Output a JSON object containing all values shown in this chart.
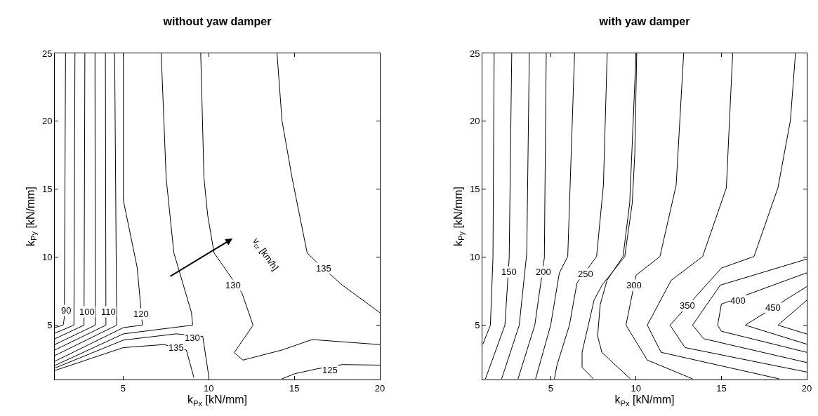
{
  "chart_data": [
    {
      "type": "line",
      "title": "without yaw damper",
      "xlabel": "k$_{Px}$ [kN/mm]",
      "ylabel": "k$_{Py}$ [kN/mm]",
      "xlim": [
        1,
        20
      ],
      "ylim": [
        1,
        25
      ],
      "xticks": [
        5,
        10,
        15,
        20
      ],
      "yticks": [
        5,
        10,
        15,
        20,
        25
      ],
      "grid": false,
      "series": [
        {
          "color": "#000000",
          "x": [
            1.63,
            1.56,
            1.49,
            1
          ],
          "values": [
            25,
            5.55,
            5,
            4.82
          ]
        },
        {
          "color": "#000000",
          "x": [
            2.18,
            2.12,
            1
          ],
          "values": [
            25,
            5,
            4.41
          ]
        },
        {
          "color": "#000000",
          "x": [
            2.76,
            2.71,
            1
          ],
          "values": [
            25,
            5,
            3.99
          ]
        },
        {
          "color": "#000000",
          "x": [
            3.35,
            3.37,
            1
          ],
          "values": [
            25,
            5,
            3.57
          ]
        },
        {
          "color": "#000000",
          "x": [
            3.96,
            3.99,
            1
          ],
          "values": [
            25,
            5,
            3.17
          ]
        },
        {
          "color": "#000000",
          "x": [
            4.5,
            4.62,
            1
          ],
          "values": [
            25,
            5,
            2.76
          ]
        },
        {
          "color": "#000000",
          "x": [
            5.01,
            5.01,
            5.82,
            6.12,
            5.01,
            1
          ],
          "values": [
            25,
            14.17,
            9.22,
            5,
            4.82,
            2.34
          ]
        },
        {
          "color": "#000000",
          "x": [
            7.22,
            7.51,
            7.96,
            8.99,
            9.06,
            5.01,
            1
          ],
          "values": [
            25,
            15.83,
            10.32,
            5.92,
            5,
            4.36,
            2.03
          ]
        },
        {
          "color": "#000000",
          "x": [
            1,
            5.01,
            8.1,
            9.65,
            10.01
          ],
          "values": [
            1.84,
            3.9,
            4.36,
            4.17,
            1.15
          ]
        },
        {
          "color": "#000000",
          "x": [
            1,
            5.01,
            7.37,
            8.69,
            9.13
          ],
          "values": [
            1.66,
            3.35,
            3.57,
            3.17,
            1.15
          ]
        },
        {
          "color": "#000000",
          "x": [
            9.53,
            9.72,
            9.94,
            10.31,
            11.93,
            12.59,
            11.49,
            12,
            14.28,
            16.04,
            20
          ],
          "values": [
            25,
            15.83,
            13.07,
            10.32,
            7.39,
            5,
            2.98,
            2.43,
            3.17,
            3.94,
            3.57
          ]
        },
        {
          "color": "#000000",
          "x": [
            14.28,
            15.01,
            16.34,
            17.81,
            20
          ],
          "values": [
            1.05,
            1.42,
            1.79,
            2.1,
            2.06
          ]
        },
        {
          "color": "#000000",
          "x": [
            13.99,
            14.28,
            14.87,
            15.75,
            16.34,
            17.81,
            20
          ],
          "values": [
            25,
            20.05,
            15.83,
            10.32,
            9.59,
            7.94,
            5.92
          ]
        }
      ],
      "annotations": [
        {
          "text": "90",
          "x": 1.66,
          "y": 6.1
        },
        {
          "text": "100",
          "x": 2.88,
          "y": 6.0
        },
        {
          "text": "110",
          "x": 4.13,
          "y": 6.0
        },
        {
          "text": "120",
          "x": 6.04,
          "y": 5.83
        },
        {
          "text": "130",
          "x": 9.06,
          "y": 4.08
        },
        {
          "text": "135",
          "x": 8.1,
          "y": 3.35
        },
        {
          "text": "130",
          "x": 11.41,
          "y": 7.94
        },
        {
          "text": "135",
          "x": 16.71,
          "y": 9.17
        },
        {
          "text": "125",
          "x": 17.07,
          "y": 1.7
        },
        "v$_{cr}$ [km/h]"
      ]
    },
    {
      "type": "line",
      "title": "with yaw damper",
      "xlabel": "k$_{Px}$ [kN/mm]",
      "ylabel": "k$_{Py}$ [kN/mm]",
      "xlim": [
        1,
        20
      ],
      "ylim": [
        1,
        25
      ],
      "xticks": [
        5,
        10,
        15,
        20
      ],
      "yticks": [
        5,
        10,
        15,
        20,
        25
      ],
      "grid": false,
      "series": [
        {
          "color": "#000000",
          "x": [
            1.69,
            1.62,
            1.47,
            1.03
          ],
          "values": [
            25,
            9.95,
            5,
            3.6
          ]
        },
        {
          "color": "#000000",
          "x": [
            2.72,
            2.57,
            2.32,
            1.18
          ],
          "values": [
            25,
            9.95,
            5,
            1.05
          ]
        },
        {
          "color": "#000000",
          "x": [
            3.75,
            3.6,
            3.16,
            2.13
          ],
          "values": [
            25,
            10.3,
            5,
            1.05
          ]
        },
        {
          "color": "#000000",
          "x": [
            4.74,
            4.63,
            4.07,
            3.09
          ],
          "values": [
            25,
            9.95,
            5,
            1.05
          ]
        },
        {
          "color": "#000000",
          "x": [
            6.4,
            6.0,
            5.51,
            5.0,
            4.12
          ],
          "values": [
            25,
            10.05,
            8.85,
            5,
            1.05
          ]
        },
        {
          "color": "#000000",
          "x": [
            8.31,
            8.09,
            7.69,
            6.54,
            6.1,
            5.37,
            5.22
          ],
          "values": [
            25,
            15.3,
            10.05,
            8.1,
            5,
            2.06,
            1.05
          ]
        },
        {
          "color": "#000000",
          "x": [
            10.04,
            9.93,
            9.78,
            9.34,
            8.01,
            7.54,
            6.84,
            6.84,
            7.5
          ],
          "values": [
            25,
            17.66,
            14,
            10.05,
            7.94,
            6.83,
            3,
            1.9,
            1.05
          ]
        },
        {
          "color": "#000000",
          "x": [
            10,
            9.63,
            9.24,
            8.3,
            7.9,
            7.75,
            8.0,
            9.66
          ],
          "values": [
            25,
            14,
            10.05,
            8.3,
            6.5,
            4.2,
            3.0,
            1.05
          ]
        },
        {
          "color": "#000000",
          "x": [
            12.79,
            12.35,
            11.4,
            10,
            9.41,
            10.66,
            13.31
          ],
          "values": [
            25,
            15.3,
            10.05,
            8.67,
            5,
            2.43,
            1.05
          ]
        },
        {
          "color": "#000000",
          "x": [
            15.66,
            15.29,
            13.9,
            12.06,
            10.66,
            11.47,
            18.38
          ],
          "values": [
            25,
            15.1,
            10.05,
            8.3,
            5,
            3,
            1.05
          ]
        },
        {
          "color": "#000000",
          "x": [
            19.34,
            19.04,
            18.31,
            16.91,
            15,
            11.99,
            12.87,
            20
          ],
          "values": [
            25,
            20.05,
            15.1,
            10.05,
            9.2,
            5,
            3.35,
            1.55
          ]
        },
        {
          "color": "#000000",
          "x": [
            20,
            14.93,
            13.31,
            13.97,
            20
          ],
          "values": [
            9.86,
            7.94,
            5,
            4.0,
            2.25
          ]
        },
        {
          "color": "#000000",
          "x": [
            20,
            15,
            14.78,
            15,
            20
          ],
          "values": [
            8.85,
            6.55,
            5,
            4.55,
            3.0
          ]
        },
        {
          "color": "#000000",
          "x": [
            20,
            16.4,
            20
          ],
          "values": [
            7.84,
            5,
            3.6
          ]
        },
        {
          "color": "#000000",
          "x": [
            20,
            18.31,
            20
          ],
          "values": [
            6.83,
            5,
            4.35
          ]
        }
      ],
      "annotations": [
        {
          "text": "150",
          "x": 2.57,
          "y": 8.94
        },
        {
          "text": "200",
          "x": 4.59,
          "y": 8.94
        },
        {
          "text": "250",
          "x": 7.06,
          "y": 8.76
        },
        {
          "text": "300",
          "x": 9.88,
          "y": 7.94
        },
        {
          "text": "350",
          "x": 13.01,
          "y": 6.42
        },
        {
          "text": "400",
          "x": 15.96,
          "y": 6.83
        },
        {
          "text": "450",
          "x": 18.01,
          "y": 6.27
        }
      ]
    }
  ]
}
